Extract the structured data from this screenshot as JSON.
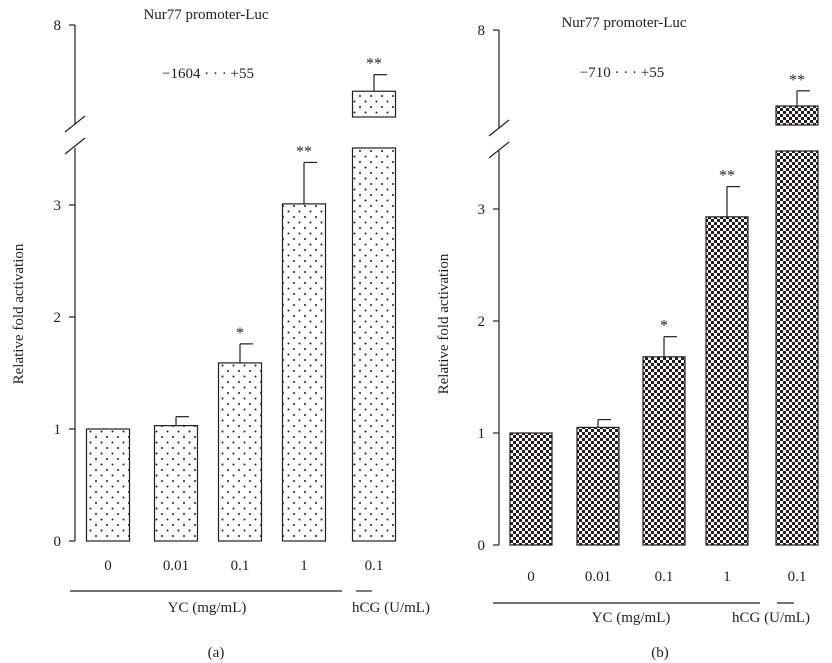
{
  "chart_data": [
    {
      "type": "bar",
      "panel_label": "(a)",
      "title": "Nur77 promoter-Luc",
      "construct": "−1604 · · · +55",
      "ylabel": "Relative fold activation",
      "ylim": [
        0,
        8
      ],
      "axis_break": [
        3.5,
        5.5
      ],
      "yticks": [
        "0",
        "1",
        "2",
        "3",
        "8"
      ],
      "categories": [
        "0",
        "0.01",
        "0.1",
        "1",
        "0.1"
      ],
      "values": [
        1.0,
        1.03,
        1.59,
        3.01,
        6.2
      ],
      "errors": [
        0.0,
        0.08,
        0.17,
        0.37,
        0.45
      ],
      "significance": [
        "",
        "",
        "*",
        "**",
        "**"
      ],
      "groups": [
        {
          "label": "YC (mg/mL)",
          "from": 0,
          "to": 3
        },
        {
          "label": "hCG (U/mL)",
          "from": 4,
          "to": 4
        }
      ],
      "fill_pattern": "dots",
      "grid": false
    },
    {
      "type": "bar",
      "panel_label": "(b)",
      "title": "Nur77 promoter-Luc",
      "construct": "−710 · · · +55",
      "ylabel": "Relative fold activation",
      "ylim": [
        0,
        8
      ],
      "axis_break": [
        3.5,
        5.5
      ],
      "yticks": [
        "0",
        "1",
        "2",
        "3",
        "8"
      ],
      "categories": [
        "0",
        "0.01",
        "0.1",
        "1",
        "0.1"
      ],
      "values": [
        1.0,
        1.05,
        1.68,
        2.93,
        6.0
      ],
      "errors": [
        0.0,
        0.07,
        0.18,
        0.27,
        0.4
      ],
      "significance": [
        "",
        "",
        "*",
        "**",
        "**"
      ],
      "groups": [
        {
          "label": "YC (mg/mL)",
          "from": 0,
          "to": 3
        },
        {
          "label": "hCG (U/mL)",
          "from": 4,
          "to": 4
        }
      ],
      "fill_pattern": "checker",
      "grid": false
    }
  ]
}
